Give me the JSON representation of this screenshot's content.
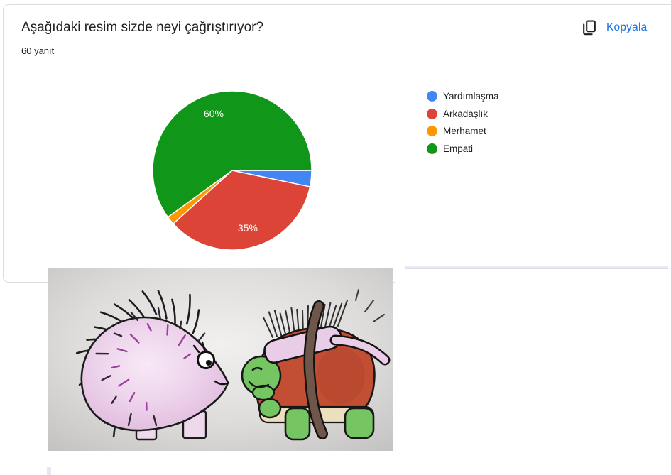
{
  "header": {
    "title": "Aşağıdaki resim sizde neyi çağrıştırıyor?",
    "responses": "60 yanıt",
    "copy_label": "Kopyala",
    "copy_color": "#1a73e8"
  },
  "chart_data": {
    "type": "pie",
    "title": "Aşağıdaki resim sizde neyi çağrıştırıyor?",
    "subtitle": "60 yanıt",
    "total_responses": 60,
    "categories": [
      "Yardımlaşma",
      "Arkadaşlık",
      "Merhamet",
      "Empati"
    ],
    "values": [
      3.3,
      35,
      1.7,
      60
    ],
    "slice_labels": [
      "",
      "35%",
      "",
      "60%"
    ],
    "colors": [
      "#4285f4",
      "#db4437",
      "#ff9800",
      "#109618"
    ],
    "legend_position": "right",
    "start_angle_deg": 0,
    "direction": "clockwise",
    "label_color": "#ffffff"
  },
  "image": {
    "description": "Cartoon of a pink hedgehog facing a green turtle that carries a hairbrush strapped to its red shell"
  }
}
